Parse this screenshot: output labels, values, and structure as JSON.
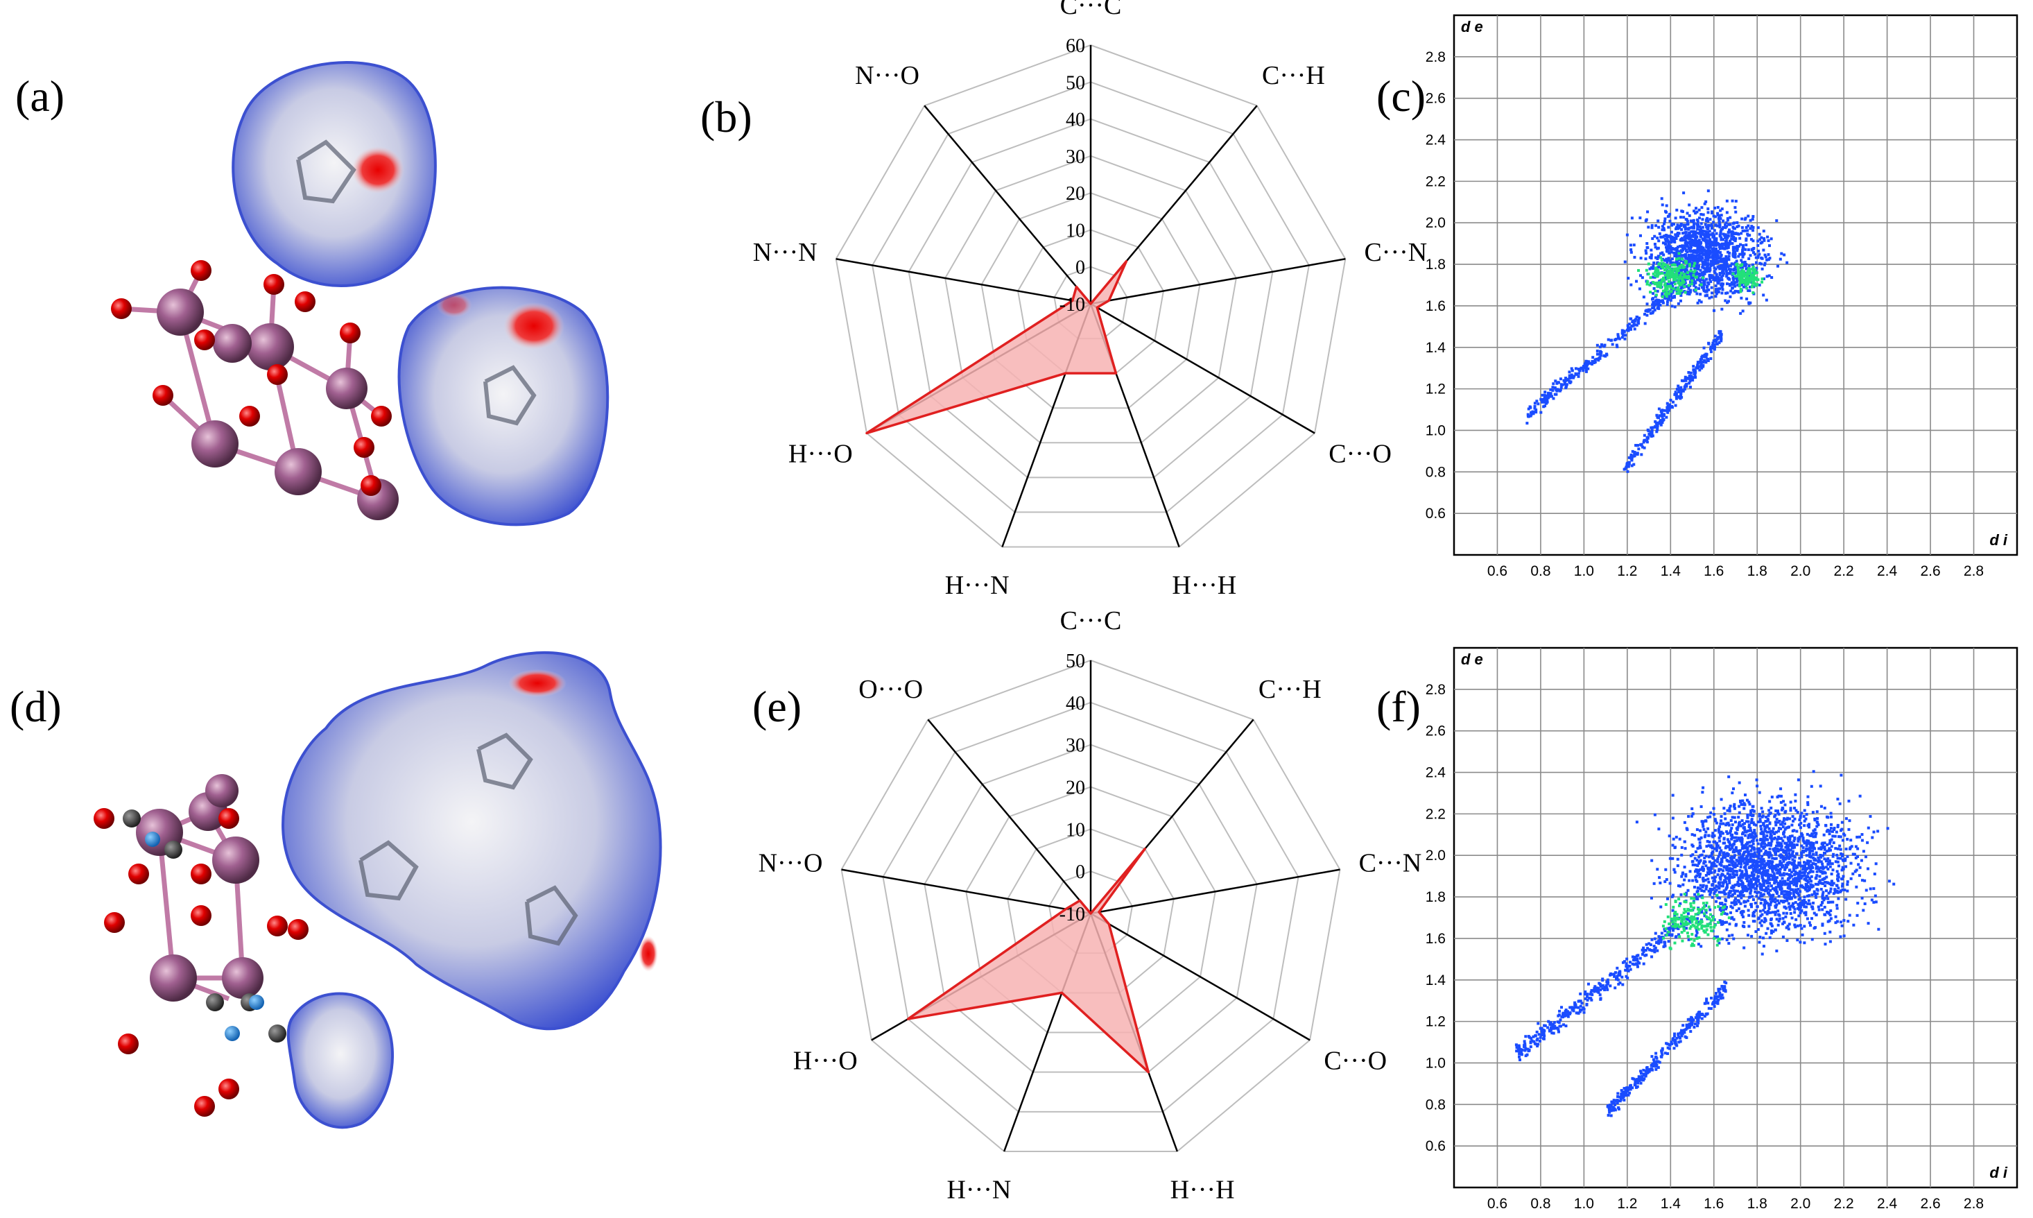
{
  "panel_labels": [
    "(a)",
    "(b)",
    "(c)",
    "(d)",
    "(e)",
    "(f)"
  ],
  "colors": {
    "radar_fill": "#f7b3b3",
    "radar_line": "#e02020",
    "grid": "#bdbdbd",
    "spoke": "#000000",
    "surface_blue": "#4a5ed8",
    "surface_white": "#f2f2f2",
    "surface_red": "#e01818",
    "atom_red": "#e00000",
    "atom_purple": "#a06090",
    "bond_pink": "#c07aa6",
    "fp_blue": "#1a4cff",
    "fp_green": "#22e07a"
  },
  "chart_data": [
    {
      "panel": "(b)",
      "type": "radar",
      "categories": [
        "C···C",
        "C···H",
        "C···N",
        "C···O",
        "H···H",
        "H···N",
        "H···O",
        "N···N",
        "N···O"
      ],
      "values": [
        -10,
        5,
        -5,
        -8,
        10,
        10,
        60,
        -5,
        -4
      ],
      "rlim": [
        -10,
        60
      ],
      "ticks": [
        -10,
        0,
        10,
        20,
        30,
        40,
        50,
        60
      ],
      "grid": true
    },
    {
      "panel": "(e)",
      "type": "radar",
      "categories": [
        "C···C",
        "C···H",
        "C···N",
        "C···O",
        "H···H",
        "H···N",
        "H···O",
        "N···O",
        "O···O"
      ],
      "values": [
        -10,
        10,
        -8,
        -5,
        30,
        10,
        40,
        -4,
        -6
      ],
      "rlim": [
        -10,
        50
      ],
      "ticks": [
        -10,
        0,
        10,
        20,
        30,
        40,
        50
      ],
      "grid": true
    },
    {
      "panel": "(c)",
      "type": "scatter",
      "xlabel": "d i",
      "ylabel": "d e",
      "xlim": [
        0.4,
        3.0
      ],
      "ylim": [
        0.4,
        3.0
      ],
      "xticks": [
        "0.6",
        "0.8",
        "1.0",
        "1.2",
        "1.4",
        "1.6",
        "1.8",
        "2.0",
        "2.2",
        "2.4",
        "2.6",
        "2.8"
      ],
      "yticks": [
        "0.6",
        "0.8",
        "1.0",
        "1.2",
        "1.4",
        "1.6",
        "1.8",
        "2.0",
        "2.2",
        "2.4",
        "2.6",
        "2.8"
      ],
      "grid": true
    },
    {
      "panel": "(f)",
      "type": "scatter",
      "xlabel": "d i",
      "ylabel": "d e",
      "xlim": [
        0.4,
        3.0
      ],
      "ylim": [
        0.4,
        3.0
      ],
      "xticks": [
        "0.6",
        "0.8",
        "1.0",
        "1.2",
        "1.4",
        "1.6",
        "1.8",
        "2.0",
        "2.2",
        "2.4",
        "2.6",
        "2.8"
      ],
      "yticks": [
        "0.6",
        "0.8",
        "1.0",
        "1.2",
        "1.4",
        "1.6",
        "1.8",
        "2.0",
        "2.2",
        "2.4",
        "2.6",
        "2.8"
      ],
      "grid": true
    }
  ]
}
